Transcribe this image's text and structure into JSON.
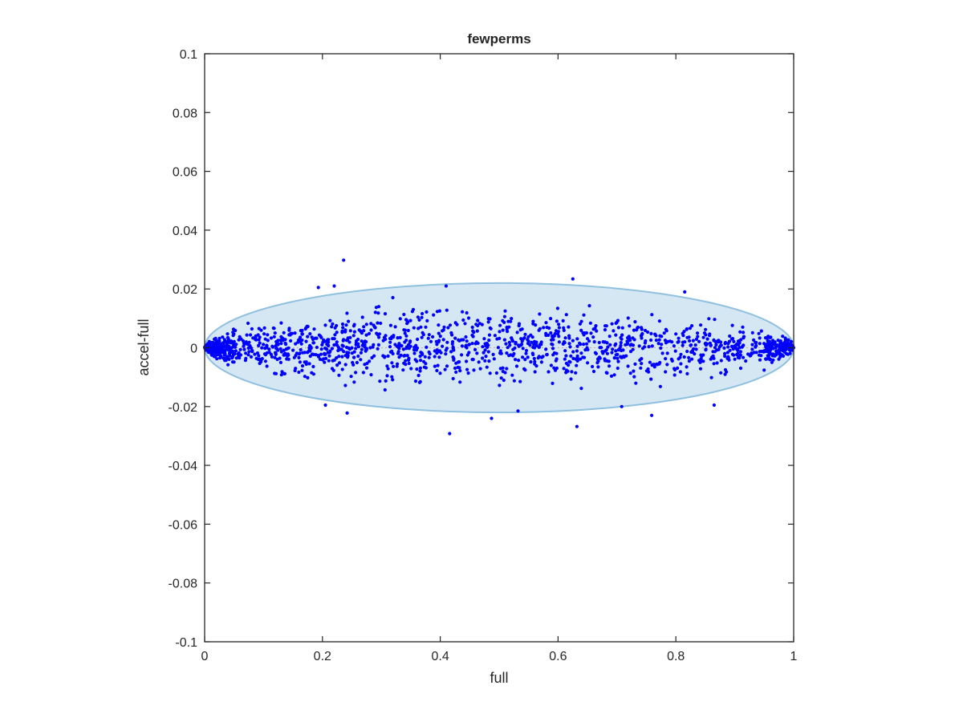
{
  "chart_data": {
    "type": "scatter",
    "title": "fewperms",
    "xlabel": "full",
    "ylabel": "accel-full",
    "xlim": [
      0,
      1
    ],
    "ylim": [
      -0.1,
      0.1
    ],
    "xticks": [
      0,
      0.2,
      0.4,
      0.6,
      0.8,
      1
    ],
    "xtick_labels": [
      "0",
      "0.2",
      "0.4",
      "0.6",
      "0.8",
      "1"
    ],
    "yticks": [
      -0.1,
      -0.08,
      -0.06,
      -0.04,
      -0.02,
      0,
      0.02,
      0.04,
      0.06,
      0.08,
      0.1
    ],
    "ytick_labels": [
      "-0.1",
      "-0.08",
      "-0.06",
      "-0.04",
      "-0.02",
      "0",
      "0.02",
      "0.04",
      "0.06",
      "0.08",
      "0.1"
    ],
    "grid": false,
    "colors": {
      "points": "#0000ff",
      "region_fill": "#d5e7f3",
      "region_edge": "#8fc0df",
      "mean_line": "#d9a0a0"
    },
    "region": {
      "shape": "ellipse",
      "center": [
        0.5,
        0
      ],
      "x_half_width": 0.5,
      "y_half_height": 0.022
    },
    "point_count": 1600,
    "series": [
      {
        "style": "markers",
        "highlighted_points": [
          [
            0.236,
            0.0298
          ],
          [
            0.416,
            -0.0292
          ],
          [
            0.625,
            0.0234
          ],
          [
            0.632,
            -0.0268
          ],
          [
            0.242,
            -0.0222
          ],
          [
            0.22,
            0.021
          ],
          [
            0.205,
            -0.0195
          ],
          [
            0.759,
            -0.023
          ],
          [
            0.708,
            -0.02
          ],
          [
            0.487,
            -0.024
          ],
          [
            0.532,
            -0.0215
          ],
          [
            0.815,
            0.019
          ],
          [
            0.865,
            -0.0195
          ],
          [
            0.41,
            0.021
          ],
          [
            0.193,
            0.0205
          ]
        ]
      }
    ]
  }
}
